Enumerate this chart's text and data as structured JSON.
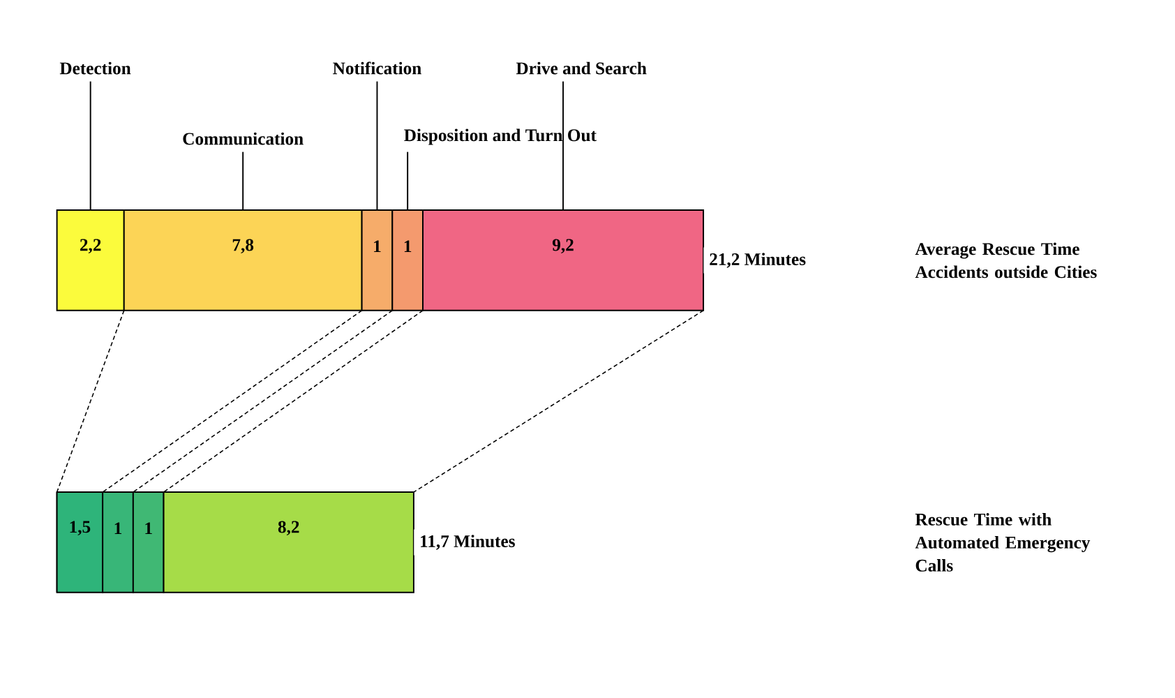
{
  "chart_data": {
    "type": "bar",
    "orientation": "horizontal",
    "stacked": true,
    "categories": [
      "Average Rescue Time Accidents outside Cities",
      "Rescue Time with Automated Emergency Calls"
    ],
    "series": [
      {
        "name": "Detection",
        "values": [
          2.2,
          0
        ],
        "value_labels": [
          "2,2",
          null
        ],
        "colors": [
          "#fbfb3c",
          "#2cb47a"
        ]
      },
      {
        "name": "Communication",
        "values": [
          7.8,
          1.5
        ],
        "value_labels": [
          "7,8",
          "1,5"
        ],
        "colors": [
          "#fcd456",
          "#2eb47a"
        ]
      },
      {
        "name": "Notification",
        "values": [
          1,
          1
        ],
        "value_labels": [
          "1",
          "1"
        ],
        "colors": [
          "#f6ac6a",
          "#38b678"
        ]
      },
      {
        "name": "Disposition and Turn Out",
        "values": [
          1,
          1
        ],
        "value_labels": [
          "1",
          "1"
        ],
        "colors": [
          "#f49a6e",
          "#40b874"
        ]
      },
      {
        "name": "Drive and Search",
        "values": [
          9.2,
          8.2
        ],
        "value_labels": [
          "9,2",
          "8,2"
        ],
        "colors": [
          "#f06684",
          "#a6dc48"
        ]
      }
    ],
    "totals": [
      "21,2 Minutes",
      "11,7 Minutes"
    ]
  }
}
